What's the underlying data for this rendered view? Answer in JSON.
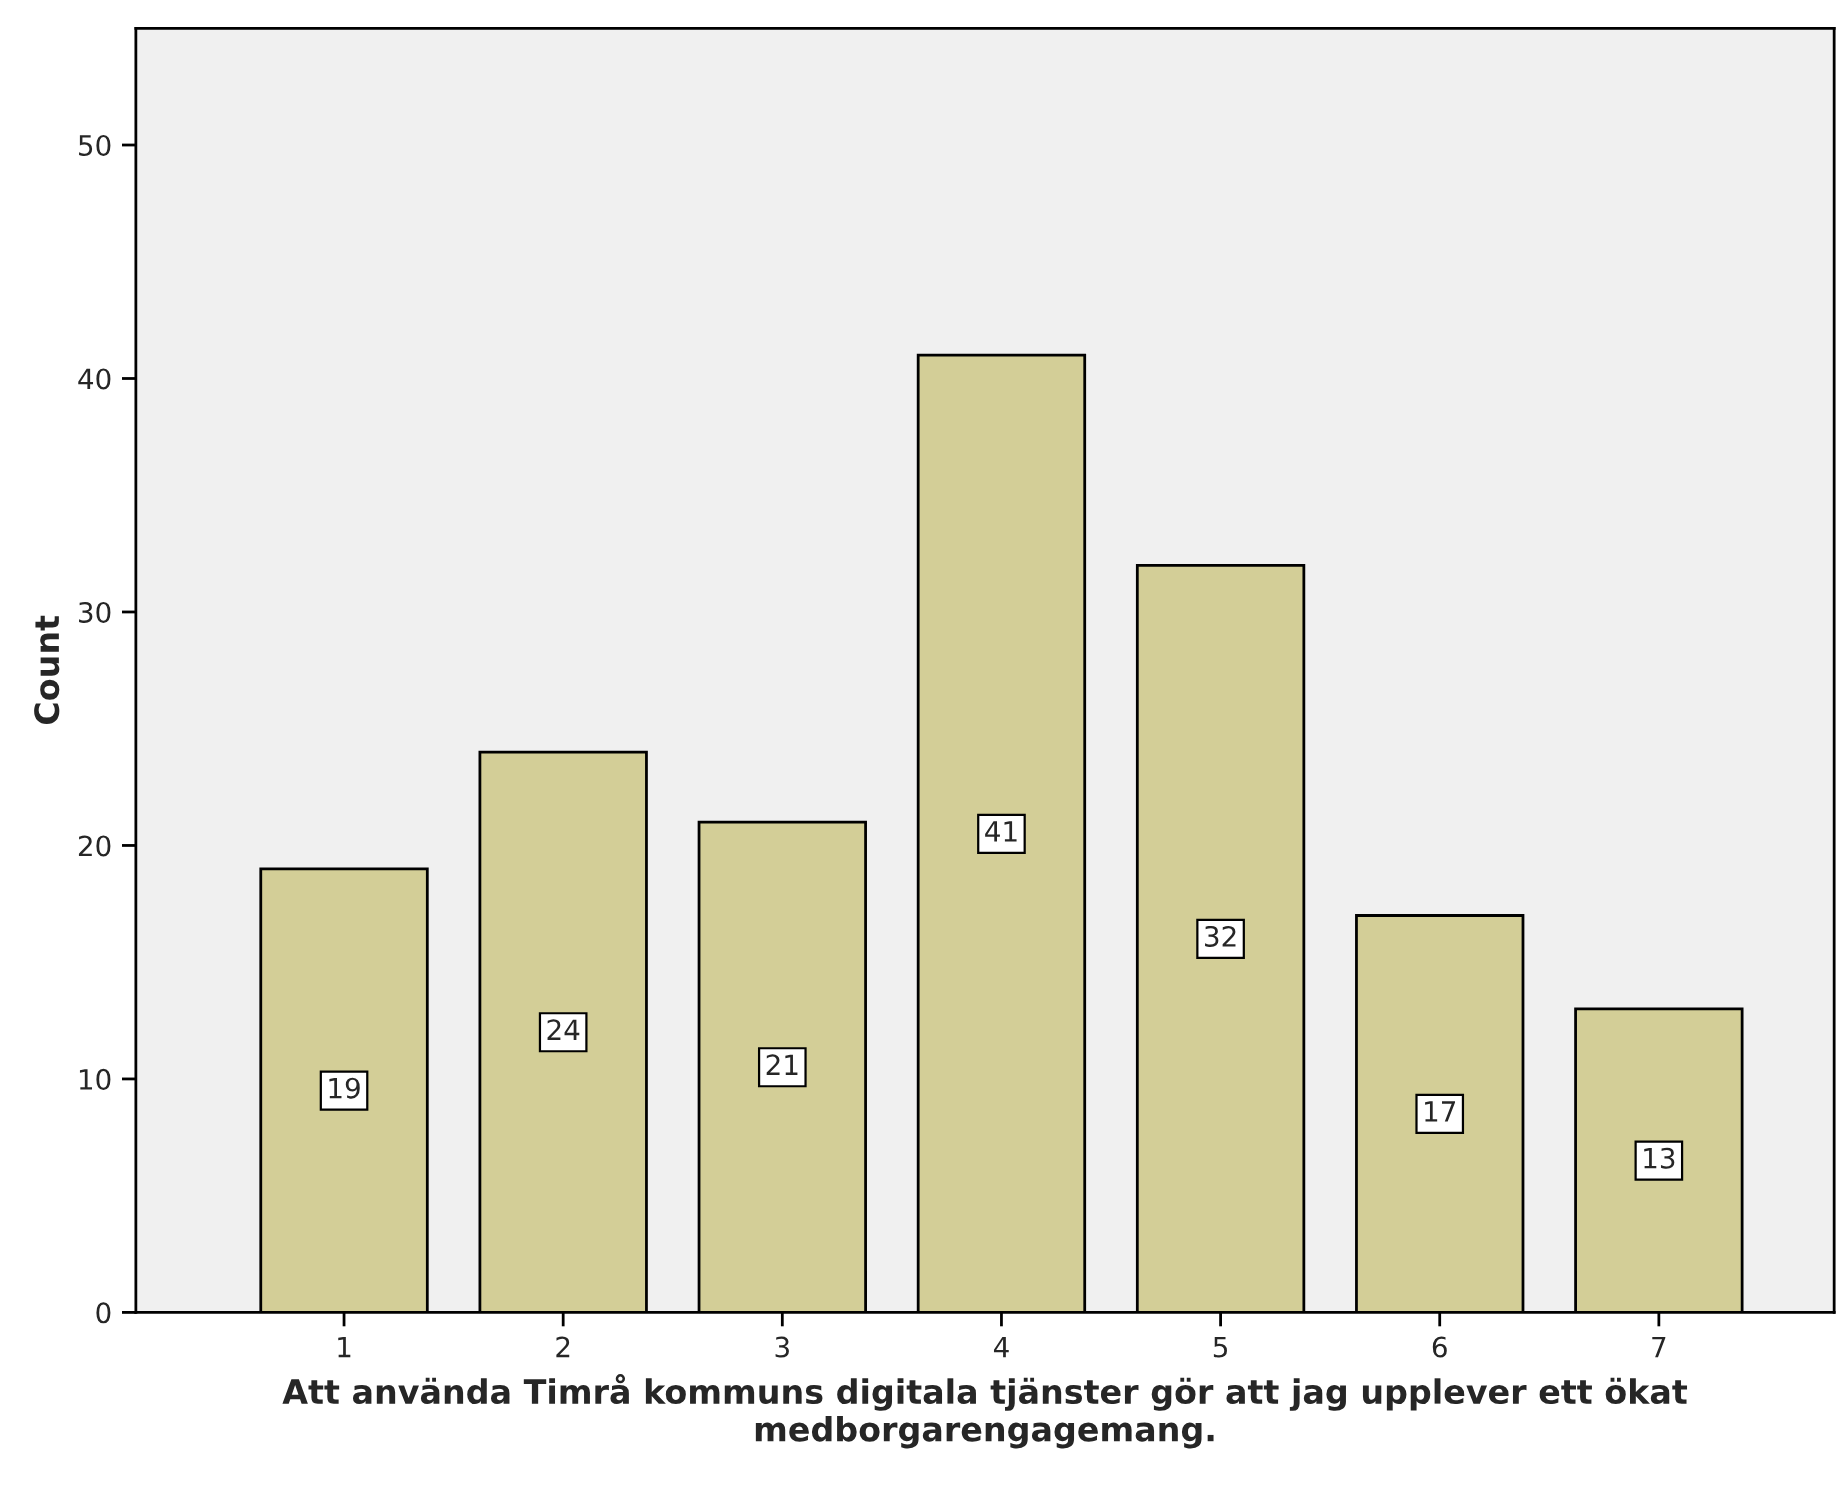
{
  "chart_data": {
    "type": "bar",
    "xlabel": "Att använda Timrå kommuns digitala tjänster gör att jag upplever ett ökat medborgarengagemang.",
    "ylabel": "Count",
    "categories": [
      "1",
      "2",
      "3",
      "4",
      "5",
      "6",
      "7"
    ],
    "values": [
      19,
      24,
      21,
      41,
      32,
      17,
      13
    ],
    "color": "#d3ce97",
    "ylim": [
      0,
      55
    ],
    "yticks": [
      0,
      10,
      20,
      30,
      40,
      50
    ],
    "grid": false,
    "data_labels": true
  }
}
